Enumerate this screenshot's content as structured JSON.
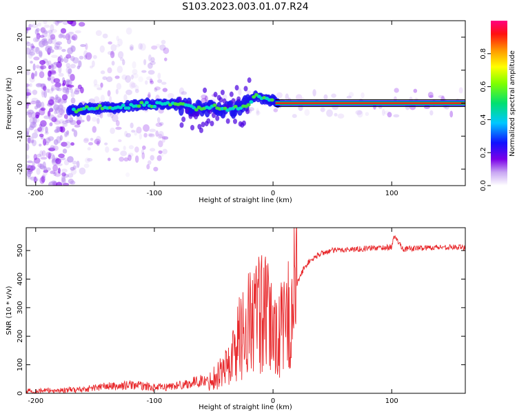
{
  "title": "S103.2023.003.01.07.R24",
  "chart_data": [
    {
      "type": "heatmap",
      "xlabel": "Height of straight line (km)",
      "ylabel": "Frequency (Hz)",
      "xlim": [
        -208,
        162
      ],
      "ylim": [
        -25,
        25
      ],
      "xticks": [
        -200,
        -100,
        0,
        100
      ],
      "yticks": [
        20,
        10,
        0,
        -10,
        -20
      ],
      "colorbar": {
        "label": "Normalized spectral amplitude",
        "range": [
          0.0,
          1.0
        ],
        "ticks": [
          0.0,
          0.2,
          0.4,
          0.6,
          0.8
        ]
      },
      "ridge": {
        "x": [
          -170,
          -160,
          -150,
          -140,
          -130,
          -120,
          -110,
          -100,
          -90,
          -80,
          -70,
          -60,
          -50,
          -40,
          -30,
          -20,
          -15,
          -10,
          -5,
          0,
          20,
          40,
          60,
          80,
          100,
          120,
          140,
          160
        ],
        "y": [
          -2.5,
          -1.8,
          -1.5,
          -1.2,
          -1.5,
          -0.8,
          -0.3,
          -0.5,
          0.0,
          -0.5,
          -1.0,
          -2.0,
          -1.0,
          -2.0,
          -1.5,
          0.0,
          2.5,
          1.5,
          1.0,
          0.5,
          0.0,
          0.0,
          0.0,
          0.0,
          0.0,
          0.0,
          0.0,
          0.0
        ]
      }
    },
    {
      "type": "line",
      "xlabel": "Height of straight line (km)",
      "ylabel": "SNR (10 * v/v)",
      "xlim": [
        -208,
        162
      ],
      "ylim": [
        0,
        580
      ],
      "xticks": [
        -200,
        -100,
        0,
        100
      ],
      "yticks": [
        0,
        100,
        200,
        300,
        400,
        500
      ],
      "color": "#e8282b",
      "series": [
        {
          "x": [
            -208,
            -180,
            -160,
            -150,
            -140,
            -130,
            -120,
            -110,
            -100,
            -90,
            -80,
            -70,
            -60,
            -55,
            -50,
            -40,
            -35,
            -30,
            -25,
            -20,
            -15,
            -10,
            -5,
            0,
            5,
            10,
            15,
            20,
            25,
            30,
            40,
            50,
            60,
            70,
            80,
            90,
            100,
            102,
            110,
            120,
            130,
            140,
            150,
            162
          ],
          "values": [
            8,
            10,
            14,
            20,
            25,
            24,
            30,
            26,
            20,
            22,
            28,
            35,
            45,
            40,
            55,
            90,
            120,
            180,
            220,
            250,
            270,
            285,
            260,
            220,
            210,
            230,
            300,
            380,
            430,
            460,
            490,
            500,
            503,
            505,
            508,
            510,
            512,
            550,
            505,
            508,
            510,
            512,
            512,
            510
          ]
        }
      ]
    }
  ]
}
